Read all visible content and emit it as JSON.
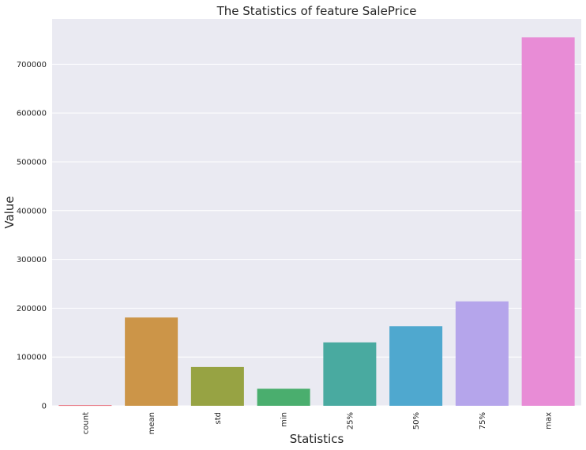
{
  "chart_data": {
    "type": "bar",
    "title": "The Statistics of feature SalePrice",
    "xlabel": "Statistics",
    "ylabel": "Value",
    "categories": [
      "count",
      "mean",
      "std",
      "min",
      "25%",
      "50%",
      "75%",
      "max"
    ],
    "values": [
      1460,
      180921,
      79443,
      34900,
      129975,
      163000,
      214000,
      755000
    ],
    "colors": [
      "#e8707e",
      "#cc9548",
      "#97a343",
      "#4aae6e",
      "#49aaa0",
      "#4fa8cf",
      "#b5a5eb",
      "#e88cd6"
    ],
    "yticks": [
      0,
      100000,
      200000,
      300000,
      400000,
      500000,
      600000,
      700000
    ],
    "ytick_labels": [
      "0",
      "100000",
      "200000",
      "300000",
      "400000",
      "500000",
      "600000",
      "700000"
    ],
    "ylim": [
      0,
      792750
    ],
    "grid": true,
    "background": "#eaeaf2"
  }
}
